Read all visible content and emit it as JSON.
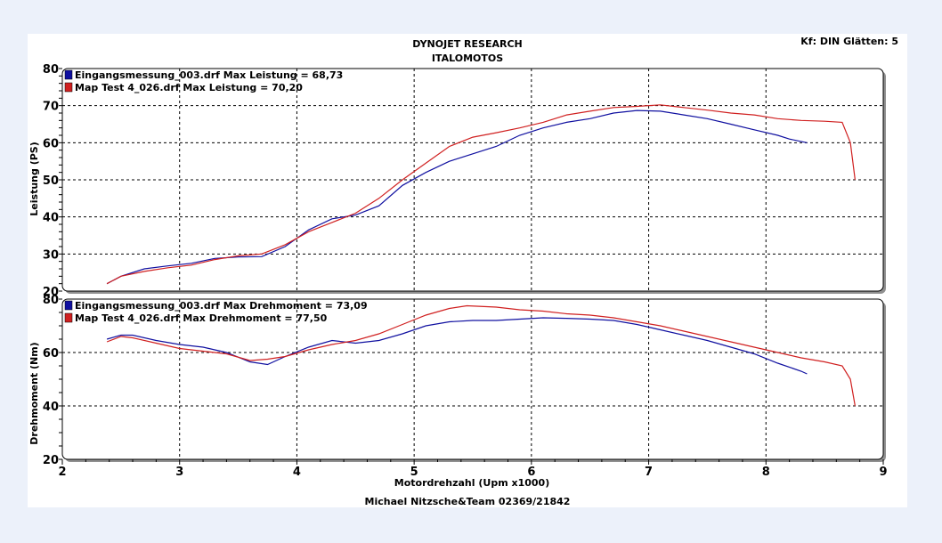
{
  "header": {
    "title": "DYNOJET RESEARCH",
    "subtitle": "ITALOMOTOS",
    "settings": "Kf: DIN  Glätten: 5"
  },
  "footer": {
    "credit": "Michael Nitzsche&Team  02369/21842"
  },
  "colors": {
    "series1": "#1010a0",
    "series2": "#d02020",
    "grid": "#000000",
    "background": "#ecf1fa"
  },
  "chart_data": [
    {
      "type": "line",
      "ylabel": "Leistung (PS)",
      "xlabel": "Motordrehzahl (Upm x1000)",
      "xlim": [
        2,
        9
      ],
      "ylim": [
        20,
        80
      ],
      "xticks": [
        "2",
        "3",
        "4",
        "5",
        "6",
        "7",
        "8",
        "9"
      ],
      "yticks": [
        "20",
        "30",
        "40",
        "50",
        "60",
        "70",
        "80"
      ],
      "grid": true,
      "legend_position": "top-left",
      "series": [
        {
          "name": "Eingangsmessung_003.drf Max Leistung = 68,73",
          "x": [
            2.38,
            2.5,
            2.7,
            2.9,
            3.1,
            3.3,
            3.5,
            3.7,
            3.9,
            4.1,
            4.3,
            4.5,
            4.7,
            4.9,
            5.1,
            5.3,
            5.5,
            5.7,
            5.9,
            6.1,
            6.3,
            6.5,
            6.7,
            6.9,
            7.1,
            7.3,
            7.5,
            7.7,
            7.9,
            8.1,
            8.2,
            8.35
          ],
          "y": [
            22,
            24,
            26,
            26.8,
            27.5,
            28.8,
            29.2,
            29.3,
            32,
            36.5,
            39.5,
            40.5,
            43,
            48.5,
            52,
            55,
            57,
            59,
            62,
            64,
            65.5,
            66.5,
            68,
            68.7,
            68.5,
            67.5,
            66.5,
            65,
            63.5,
            62,
            61,
            60
          ]
        },
        {
          "name": "Map Test 4_026.drf Max Leistung = 70,20",
          "x": [
            2.38,
            2.5,
            2.7,
            2.9,
            3.1,
            3.3,
            3.5,
            3.7,
            3.9,
            4.1,
            4.3,
            4.5,
            4.7,
            4.9,
            5.1,
            5.3,
            5.5,
            5.7,
            5.9,
            6.1,
            6.3,
            6.5,
            6.7,
            6.9,
            7.1,
            7.3,
            7.5,
            7.7,
            7.9,
            8.1,
            8.3,
            8.5,
            8.65,
            8.72,
            8.76
          ],
          "y": [
            22,
            24,
            25.3,
            26.3,
            27,
            28.5,
            29.5,
            30,
            32.5,
            36,
            38.5,
            41,
            45,
            50,
            54.5,
            59,
            61.5,
            62.7,
            64,
            65.5,
            67.5,
            68.5,
            69.5,
            69.8,
            70.2,
            69.5,
            68.8,
            68,
            67.5,
            66.5,
            66,
            65.8,
            65.5,
            60,
            50
          ]
        }
      ]
    },
    {
      "type": "line",
      "ylabel": "Drehmoment (Nm)",
      "xlabel": "Motordrehzahl (Upm x1000)",
      "xlim": [
        2,
        9
      ],
      "ylim": [
        20,
        80
      ],
      "xticks": [
        "2",
        "3",
        "4",
        "5",
        "6",
        "7",
        "8",
        "9"
      ],
      "yticks": [
        "20",
        "40",
        "60",
        "80"
      ],
      "grid": true,
      "legend_position": "top-left",
      "series": [
        {
          "name": "Eingangsmessung_003.drf Max Drehmoment = 73,09",
          "x": [
            2.38,
            2.5,
            2.6,
            2.8,
            3.0,
            3.2,
            3.4,
            3.6,
            3.75,
            3.9,
            4.1,
            4.3,
            4.5,
            4.7,
            4.9,
            5.1,
            5.3,
            5.5,
            5.7,
            5.9,
            6.1,
            6.3,
            6.5,
            6.7,
            6.9,
            7.1,
            7.3,
            7.5,
            7.7,
            7.9,
            8.1,
            8.3,
            8.35
          ],
          "y": [
            65,
            66.5,
            66.5,
            64.5,
            63,
            62,
            60,
            56.5,
            55.5,
            58.5,
            62,
            64.5,
            63.5,
            64.5,
            67,
            70,
            71.5,
            72,
            72,
            72.5,
            73,
            72.8,
            72.5,
            72,
            70.5,
            68.5,
            66.5,
            64.5,
            62,
            59.5,
            56,
            53,
            52
          ]
        },
        {
          "name": "Map Test 4_026.drf Max Drehmoment = 77,50",
          "x": [
            2.38,
            2.5,
            2.6,
            2.8,
            3.0,
            3.2,
            3.4,
            3.6,
            3.75,
            3.9,
            4.1,
            4.3,
            4.5,
            4.7,
            4.9,
            5.1,
            5.3,
            5.45,
            5.7,
            5.9,
            6.1,
            6.3,
            6.5,
            6.7,
            6.9,
            7.1,
            7.3,
            7.5,
            7.7,
            7.9,
            8.1,
            8.3,
            8.5,
            8.65,
            8.72,
            8.76
          ],
          "y": [
            64,
            66,
            65.5,
            63.5,
            61.5,
            60.5,
            59.5,
            57,
            57.5,
            58.5,
            61,
            63,
            64.5,
            67,
            70.5,
            74,
            76.5,
            77.5,
            77,
            76,
            75.5,
            74.5,
            74,
            73,
            71.5,
            70,
            68,
            66,
            64,
            62,
            60,
            58,
            56.5,
            55,
            50,
            40
          ]
        }
      ]
    }
  ]
}
